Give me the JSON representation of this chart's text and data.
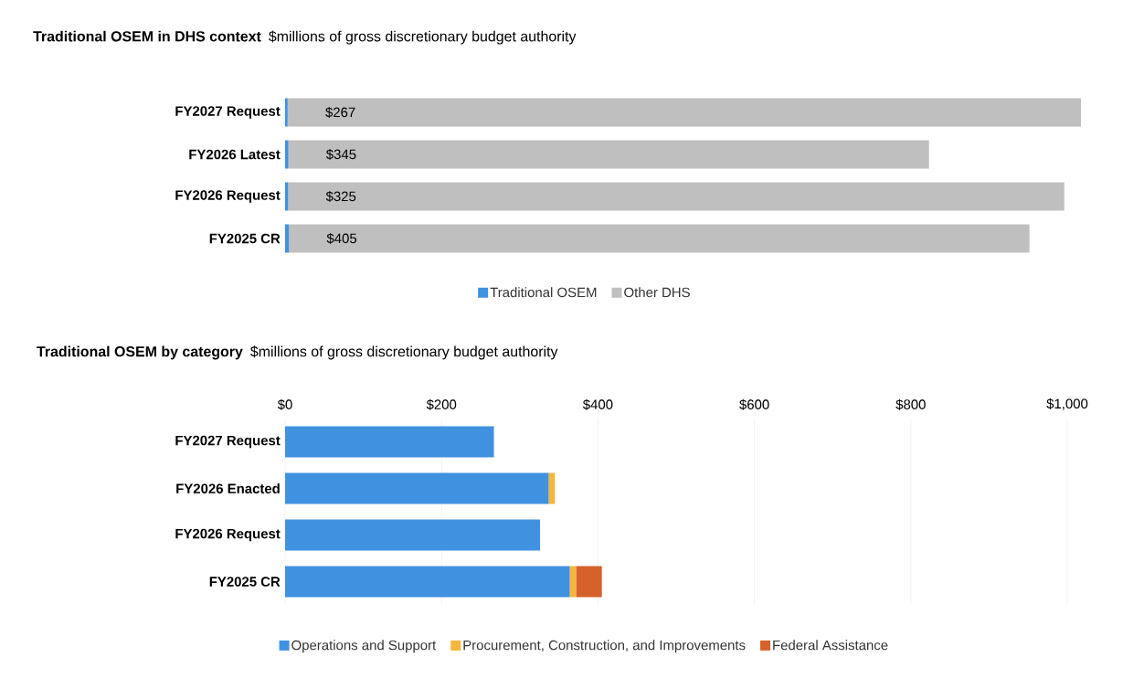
{
  "chart_data": [
    {
      "type": "bar",
      "orientation": "horizontal",
      "stacked": true,
      "tick_labels": "y",
      "title": "Traditional OSEM in DHS context",
      "subtitle": "$millions of gross discretionary budget authority",
      "categories": [
        "FY2027 Request",
        "FY2026 Latest",
        "FY2026 Request",
        "FY2025 CR"
      ],
      "legend": "bottom",
      "series": [
        {
          "name": "Traditional OSEM",
          "color": "#4191e1",
          "values": [
            267,
            345,
            325,
            405
          ],
          "value_labels": [
            "$267",
            "$345",
            "$325",
            "$405"
          ]
        },
        {
          "name": "Other DHS",
          "color": "#bfbfbf",
          "values": [
            82600,
            66700,
            80800,
            77100
          ]
        }
      ]
    },
    {
      "type": "bar",
      "orientation": "horizontal",
      "stacked": true,
      "title": "Traditional OSEM by category",
      "subtitle": "$millions of gross discretionary budget authority",
      "categories": [
        "FY2027 Request",
        "FY2026 Enacted",
        "FY2026 Request",
        "FY2025 CR"
      ],
      "legend": "bottom",
      "grid": "x",
      "xlim": [
        0,
        1000
      ],
      "xticks": [
        {
          "value": 0,
          "label": "$0"
        },
        {
          "value": 200,
          "label": "$200"
        },
        {
          "value": 400,
          "label": "$400"
        },
        {
          "value": 600,
          "label": "$600"
        },
        {
          "value": 800,
          "label": "$800"
        },
        {
          "value": 1000,
          "label": "$1,000"
        }
      ],
      "series": [
        {
          "name": "Operations and Support",
          "color": "#4191e1",
          "values": [
            267,
            337,
            326,
            364
          ]
        },
        {
          "name": "Procurement, Construction, and Improvements",
          "color": "#f4b63b",
          "values": [
            0,
            8,
            0,
            8
          ]
        },
        {
          "name": "Federal Assistance",
          "color": "#d5622a",
          "values": [
            0,
            0,
            0,
            33
          ]
        }
      ]
    }
  ]
}
